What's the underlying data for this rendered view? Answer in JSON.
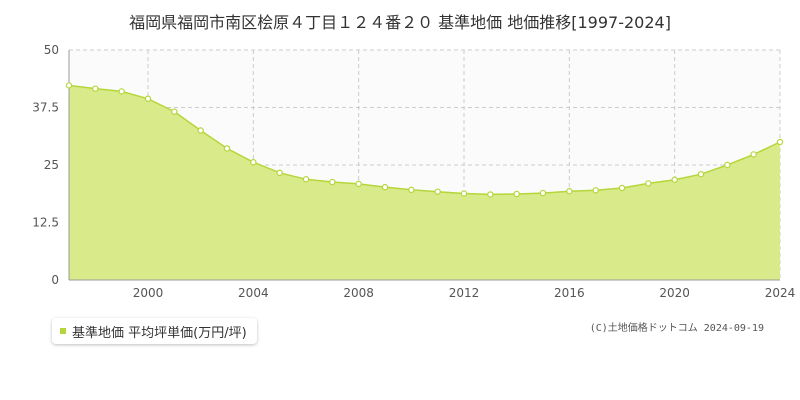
{
  "colors": {
    "series_fill": "#d9ea8a",
    "series_line": "#b5d63a",
    "marker_fill": "#ffffff",
    "legend_marker": "#b5d63a",
    "grid": "#cccccc",
    "axis": "#999999"
  },
  "chart_data": {
    "type": "area",
    "title": "福岡県福岡市南区桧原４丁目１２４番２０ 基準地価 地価推移[1997-2024]",
    "xlabel": "",
    "ylabel": "",
    "xlim": [
      1997,
      2024
    ],
    "ylim": [
      0,
      50
    ],
    "yticks": [
      0,
      12.5,
      25,
      37.5,
      50
    ],
    "yticklabels": [
      "0",
      "12.5",
      "25",
      "37.5",
      "50"
    ],
    "xticks": [
      2000,
      2004,
      2008,
      2012,
      2016,
      2020,
      2024
    ],
    "xticklabels": [
      "2000",
      "2004",
      "2008",
      "2012",
      "2016",
      "2020",
      "2024"
    ],
    "grid": true,
    "legend_position": "bottom-left",
    "series": [
      {
        "name": "基準地価 平均坪単価(万円/坪)",
        "x": [
          1997,
          1998,
          1999,
          2000,
          2001,
          2002,
          2003,
          2004,
          2005,
          2006,
          2007,
          2008,
          2009,
          2010,
          2011,
          2012,
          2013,
          2014,
          2015,
          2016,
          2017,
          2018,
          2019,
          2020,
          2021,
          2022,
          2023,
          2024
        ],
        "values": [
          42.3,
          41.6,
          41.0,
          39.4,
          36.6,
          32.5,
          28.6,
          25.6,
          23.3,
          21.9,
          21.3,
          20.9,
          20.2,
          19.6,
          19.2,
          18.8,
          18.6,
          18.7,
          18.9,
          19.3,
          19.5,
          20.0,
          21.0,
          21.8,
          23.0,
          25.0,
          27.3,
          30.0
        ]
      }
    ]
  },
  "copyright": "(C)土地価格ドットコム 2024-09-19"
}
